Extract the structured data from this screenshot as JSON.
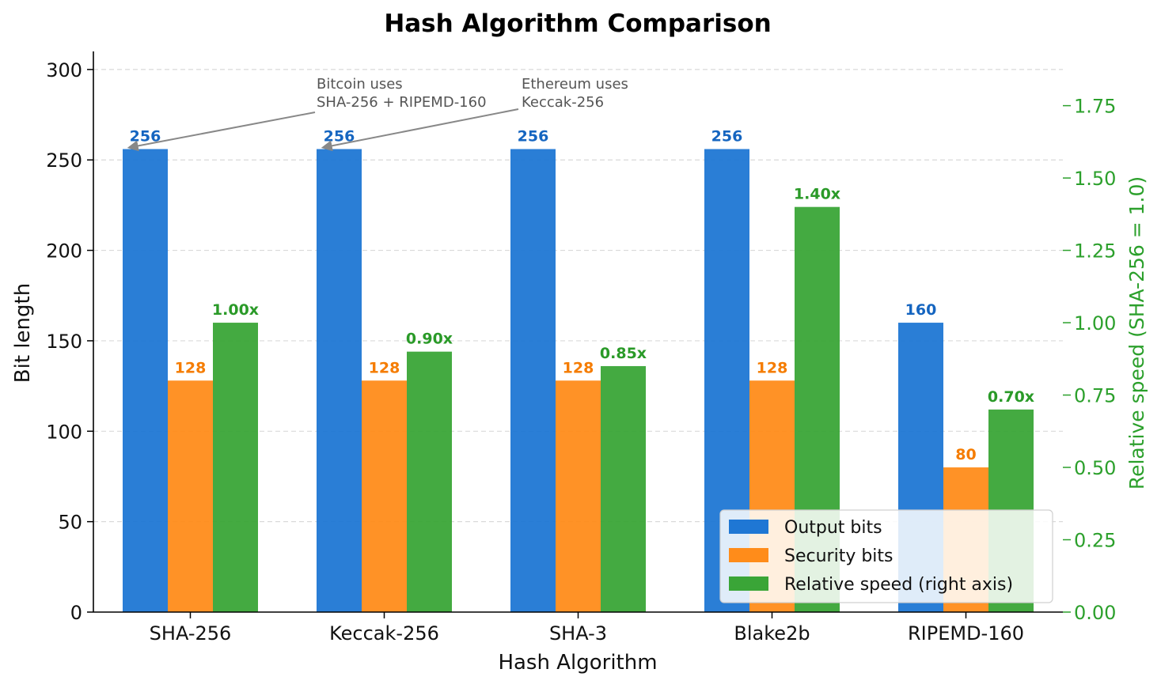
{
  "chart_data": {
    "type": "bar",
    "title": "Hash Algorithm Comparison",
    "xlabel": "Hash Algorithm",
    "ylabel": "Bit length",
    "y2label": "Relative speed (SHA-256 = 1.0)",
    "categories": [
      "SHA-256",
      "Keccak-256",
      "SHA-3",
      "Blake2b",
      "RIPEMD-160"
    ],
    "ylim": [
      0,
      310
    ],
    "y2lim": [
      0,
      1.9375
    ],
    "yticks": [
      0,
      50,
      100,
      150,
      200,
      250,
      300
    ],
    "y2ticks": [
      0.0,
      0.25,
      0.5,
      0.75,
      1.0,
      1.25,
      1.5,
      1.75
    ],
    "y2tick_labels": [
      "0.00",
      "0.25",
      "0.50",
      "0.75",
      "1.00",
      "1.25",
      "1.50",
      "1.75"
    ],
    "grid": "horizontal dashed",
    "series": [
      {
        "name": "Output bits",
        "axis": "left",
        "color": "#1f77d4",
        "label_color": "#1565c0",
        "values": [
          256,
          256,
          256,
          256,
          160
        ],
        "data_labels": [
          "256",
          "256",
          "256",
          "256",
          "160"
        ]
      },
      {
        "name": "Security bits",
        "axis": "left",
        "color": "#ff8c1a",
        "label_color": "#f57c00",
        "values": [
          128,
          128,
          128,
          128,
          80
        ],
        "data_labels": [
          "128",
          "128",
          "128",
          "128",
          "80"
        ]
      },
      {
        "name": "Relative speed (right axis)",
        "axis": "right",
        "color": "#3aa537",
        "label_color": "#2a9a28",
        "values": [
          1.0,
          0.9,
          0.85,
          1.4,
          0.7
        ],
        "data_labels": [
          "1.00x",
          "0.90x",
          "0.85x",
          "1.40x",
          "0.70x"
        ]
      }
    ],
    "annotations": [
      {
        "lines": [
          "Bitcoin uses",
          "SHA-256 + RIPEMD-160"
        ],
        "category": 0
      },
      {
        "lines": [
          "Ethereum uses",
          "Keccak-256"
        ],
        "category": 1
      }
    ],
    "legend": "lower-right",
    "right_axis_color": "#2ca02c"
  }
}
